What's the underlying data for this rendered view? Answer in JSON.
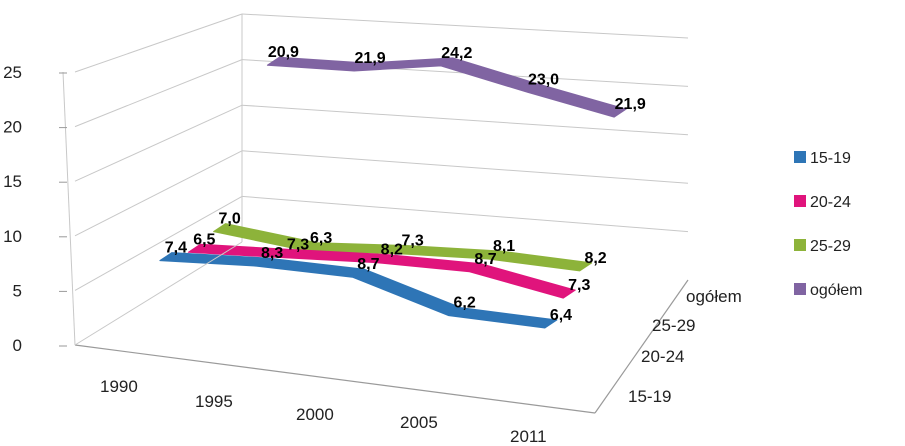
{
  "chart_data": {
    "type": "line",
    "style": "3d-ribbon",
    "categories": [
      "1990",
      "1995",
      "2000",
      "2005",
      "2011"
    ],
    "depth_categories": [
      "15-19",
      "20-24",
      "25-29",
      "ogółem"
    ],
    "ylim": [
      0,
      25
    ],
    "yticks": [
      "0",
      "5",
      "10",
      "15",
      "20",
      "25"
    ],
    "grid": true,
    "legend_position": "right",
    "title": "",
    "xlabel": "",
    "ylabel": "",
    "series": [
      {
        "name": "15-19",
        "color": "#2E75B6",
        "values": [
          7.4,
          8.3,
          8.7,
          6.2,
          6.4
        ],
        "labels": [
          "7,4",
          "8,3",
          "8,7",
          "6,2",
          "6,4"
        ]
      },
      {
        "name": "20-24",
        "color": "#E0147C",
        "values": [
          6.5,
          7.3,
          8.2,
          8.7,
          7.3
        ],
        "labels": [
          "6,5",
          "7,3",
          "8,2",
          "8,7",
          "7,3"
        ]
      },
      {
        "name": "25-29",
        "color": "#8DB33A",
        "values": [
          7.0,
          6.3,
          7.3,
          8.1,
          8.2
        ],
        "labels": [
          "7,0",
          "6,3",
          "7,3",
          "8,1",
          "8,2"
        ]
      },
      {
        "name": "ogółem",
        "color": "#8064A2",
        "values": [
          20.9,
          21.9,
          24.2,
          23.0,
          21.9
        ],
        "labels": [
          "20,9",
          "21,9",
          "24,2",
          "23,0",
          "21,9"
        ]
      }
    ]
  }
}
